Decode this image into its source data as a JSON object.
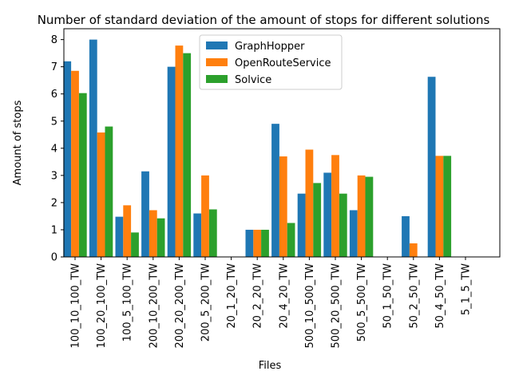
{
  "chart_data": {
    "type": "bar",
    "title": "Number of standard deviation of the amount of stops for different solutions",
    "xlabel": "Files",
    "ylabel": "Amount of stops",
    "ylim": [
      0,
      8.4
    ],
    "yticks": [
      0,
      1,
      2,
      3,
      4,
      5,
      6,
      7,
      8
    ],
    "grid": false,
    "legend_position": "top-center",
    "categories": [
      "100_10_100_TW",
      "100_20_100_TW",
      "100_5_100_TW",
      "200_10_200_TW",
      "200_20_200_TW",
      "200_5_200_TW",
      "20_1_20_TW",
      "20_2_20_TW",
      "20_4_20_TW",
      "500_10_500_TW",
      "500_20_500_TW",
      "500_5_500_TW",
      "50_1_50_TW",
      "50_2_50_TW",
      "50_4_50_TW",
      "5_1_5_TW"
    ],
    "series": [
      {
        "name": "GraphHopper",
        "color": "#1f77b4",
        "values": [
          7.2,
          8.0,
          1.48,
          3.15,
          7.0,
          1.6,
          0,
          1.0,
          4.9,
          2.33,
          3.1,
          1.72,
          0,
          1.5,
          6.63,
          0
        ]
      },
      {
        "name": "OpenRouteService",
        "color": "#ff7f0e",
        "values": [
          6.85,
          4.58,
          1.9,
          1.72,
          7.78,
          3.0,
          0,
          1.0,
          3.7,
          3.95,
          3.75,
          3.0,
          0,
          0.5,
          3.72,
          0
        ]
      },
      {
        "name": "Solvice",
        "color": "#2ca02c",
        "values": [
          6.03,
          4.8,
          0.9,
          1.42,
          7.5,
          1.75,
          0,
          1.0,
          1.25,
          2.72,
          2.33,
          2.95,
          0,
          0,
          3.72,
          0
        ]
      }
    ]
  }
}
